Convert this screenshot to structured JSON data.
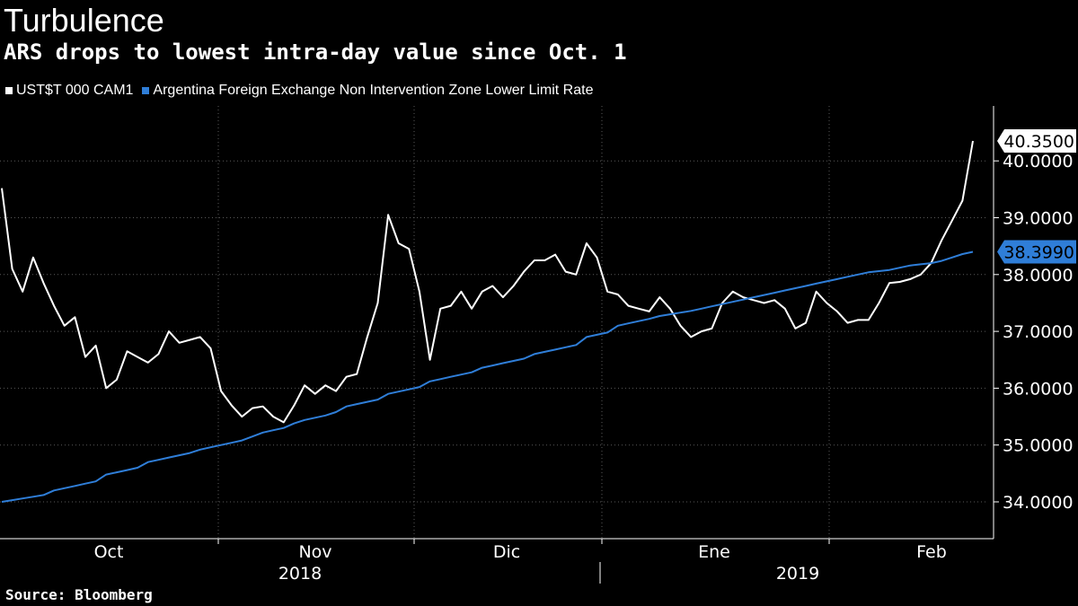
{
  "title": "Turbulence",
  "subtitle": "ARS drops to lowest intra-day value since Oct. 1",
  "source": "Source: Bloomberg",
  "colors": {
    "background": "#000000",
    "series1": "#ffffff",
    "series2": "#2f7ed8",
    "grid": "#666666"
  },
  "chart_data": {
    "type": "line",
    "title": "Turbulence",
    "subtitle": "ARS drops to lowest intra-day value since Oct. 1",
    "xlabel": "",
    "ylabel": "",
    "x_start": "2018-10-01",
    "ylim": [
      33.4,
      41.2
    ],
    "grid": true,
    "legend_position": "top-left",
    "y_ticks": [
      "34.0000",
      "35.0000",
      "36.0000",
      "37.0000",
      "38.0000",
      "39.0000",
      "40.0000"
    ],
    "x_tick_labels": [
      "Oct",
      "Nov",
      "Dic",
      "Ene",
      "Feb"
    ],
    "year_labels": [
      "2018",
      "2019"
    ],
    "series": [
      {
        "name": "UST$T 000 CAM1",
        "color": "#ffffff",
        "last_value_label": "40.3500",
        "values": [
          39.52,
          38.1,
          37.7,
          38.3,
          37.85,
          37.45,
          37.1,
          37.25,
          36.55,
          36.75,
          36.0,
          36.15,
          36.65,
          36.55,
          36.45,
          36.6,
          37.0,
          36.8,
          36.85,
          36.9,
          36.7,
          35.95,
          35.7,
          35.5,
          35.65,
          35.68,
          35.5,
          35.4,
          35.7,
          36.05,
          35.9,
          36.05,
          35.95,
          36.2,
          36.25,
          36.9,
          37.5,
          39.05,
          38.55,
          38.45,
          37.7,
          36.5,
          37.4,
          37.45,
          37.7,
          37.4,
          37.7,
          37.8,
          37.6,
          37.8,
          38.05,
          38.25,
          38.25,
          38.35,
          38.05,
          38.0,
          38.55,
          38.3,
          37.7,
          37.65,
          37.45,
          37.4,
          37.35,
          37.6,
          37.4,
          37.1,
          36.9,
          37.0,
          37.05,
          37.5,
          37.7,
          37.6,
          37.55,
          37.5,
          37.55,
          37.4,
          37.05,
          37.15,
          37.7,
          37.5,
          37.35,
          37.15,
          37.2,
          37.2,
          37.5,
          37.85,
          37.87,
          37.92,
          38.0,
          38.2,
          38.6,
          38.95,
          39.3,
          40.35
        ]
      },
      {
        "name": "Argentina Foreign Exchange Non Intervention Zone Lower Limit Rate",
        "color": "#2f7ed8",
        "last_value_label": "38.3990",
        "values": [
          34.0,
          34.03,
          34.06,
          34.09,
          34.12,
          34.2,
          34.24,
          34.28,
          34.32,
          34.36,
          34.48,
          34.52,
          34.56,
          34.6,
          34.7,
          34.74,
          34.78,
          34.82,
          34.86,
          34.92,
          34.96,
          35.0,
          35.04,
          35.08,
          35.15,
          35.22,
          35.26,
          35.3,
          35.38,
          35.44,
          35.48,
          35.52,
          35.58,
          35.68,
          35.72,
          35.76,
          35.8,
          35.9,
          35.94,
          35.98,
          36.02,
          36.12,
          36.16,
          36.2,
          36.24,
          36.28,
          36.36,
          36.4,
          36.44,
          36.48,
          36.52,
          36.6,
          36.64,
          36.68,
          36.72,
          36.76,
          36.9,
          36.94,
          36.98,
          37.1,
          37.14,
          37.18,
          37.22,
          37.27,
          37.3,
          37.33,
          37.36,
          37.4,
          37.44,
          37.48,
          37.52,
          37.56,
          37.6,
          37.64,
          37.68,
          37.72,
          37.76,
          37.8,
          37.84,
          37.88,
          37.92,
          37.96,
          38.0,
          38.04,
          38.06,
          38.08,
          38.12,
          38.16,
          38.18,
          38.2,
          38.24,
          38.3,
          38.36,
          38.399
        ]
      }
    ]
  }
}
